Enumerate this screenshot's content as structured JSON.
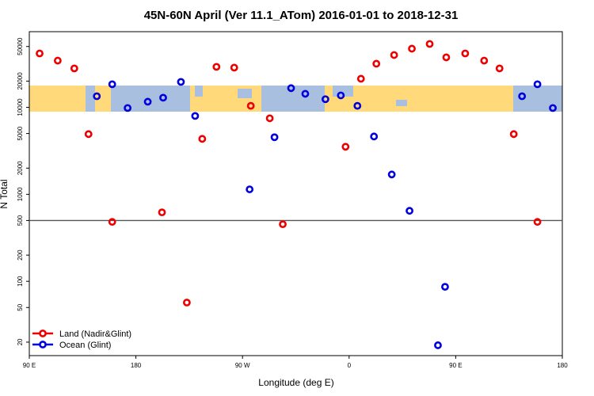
{
  "chart_data": {
    "type": "scatter",
    "title": "45N-60N April (Ver 11.1_ATom)   2016-01-01 to 2018-12-31",
    "xlabel": "Longitude (deg E)",
    "ylabel": "N Total",
    "xlim": [
      90,
      540
    ],
    "xticks": [
      {
        "value": 90,
        "label": "90 E"
      },
      {
        "value": 180,
        "label": "180"
      },
      {
        "value": 270,
        "label": "90 W"
      },
      {
        "value": 360,
        "label": "0"
      },
      {
        "value": 450,
        "label": "90 E"
      },
      {
        "value": 540,
        "label": "180"
      }
    ],
    "ylim": [
      14,
      74000
    ],
    "log_y": true,
    "yticks": [
      20,
      50,
      100,
      200,
      500,
      1000,
      2000,
      5000,
      10000,
      20000,
      50000
    ],
    "reference_line": 500,
    "legend": "lower left",
    "series": [
      {
        "name": "Land (Nadir&Glint)",
        "color": "#ee0000",
        "x": [
          98.7,
          114,
          128,
          140,
          160,
          202,
          223,
          236,
          248,
          263,
          277,
          293,
          304,
          357,
          370,
          383,
          398,
          413,
          428,
          442,
          458,
          474,
          487,
          499,
          519
        ],
        "values": [
          41600,
          34400,
          28000,
          4920,
          482,
          620,
          57,
          4340,
          29200,
          28600,
          10400,
          7480,
          453,
          3520,
          21300,
          31700,
          39900,
          47200,
          53500,
          37500,
          41600,
          34400,
          28000,
          4920,
          482
        ]
      },
      {
        "name": "Ocean (Glint)",
        "color": "#0000dd",
        "x": [
          147,
          160,
          173,
          190,
          203,
          218,
          230,
          276,
          297,
          311,
          323,
          340,
          353,
          367,
          381,
          396,
          411,
          435,
          441,
          506,
          519,
          532
        ],
        "values": [
          13400,
          18400,
          9820,
          11600,
          12900,
          19600,
          7960,
          1140,
          4530,
          16600,
          14300,
          12400,
          13700,
          10400,
          4620,
          1690,
          646,
          18.4,
          86.5,
          13400,
          18400,
          9820
        ]
      }
    ]
  }
}
